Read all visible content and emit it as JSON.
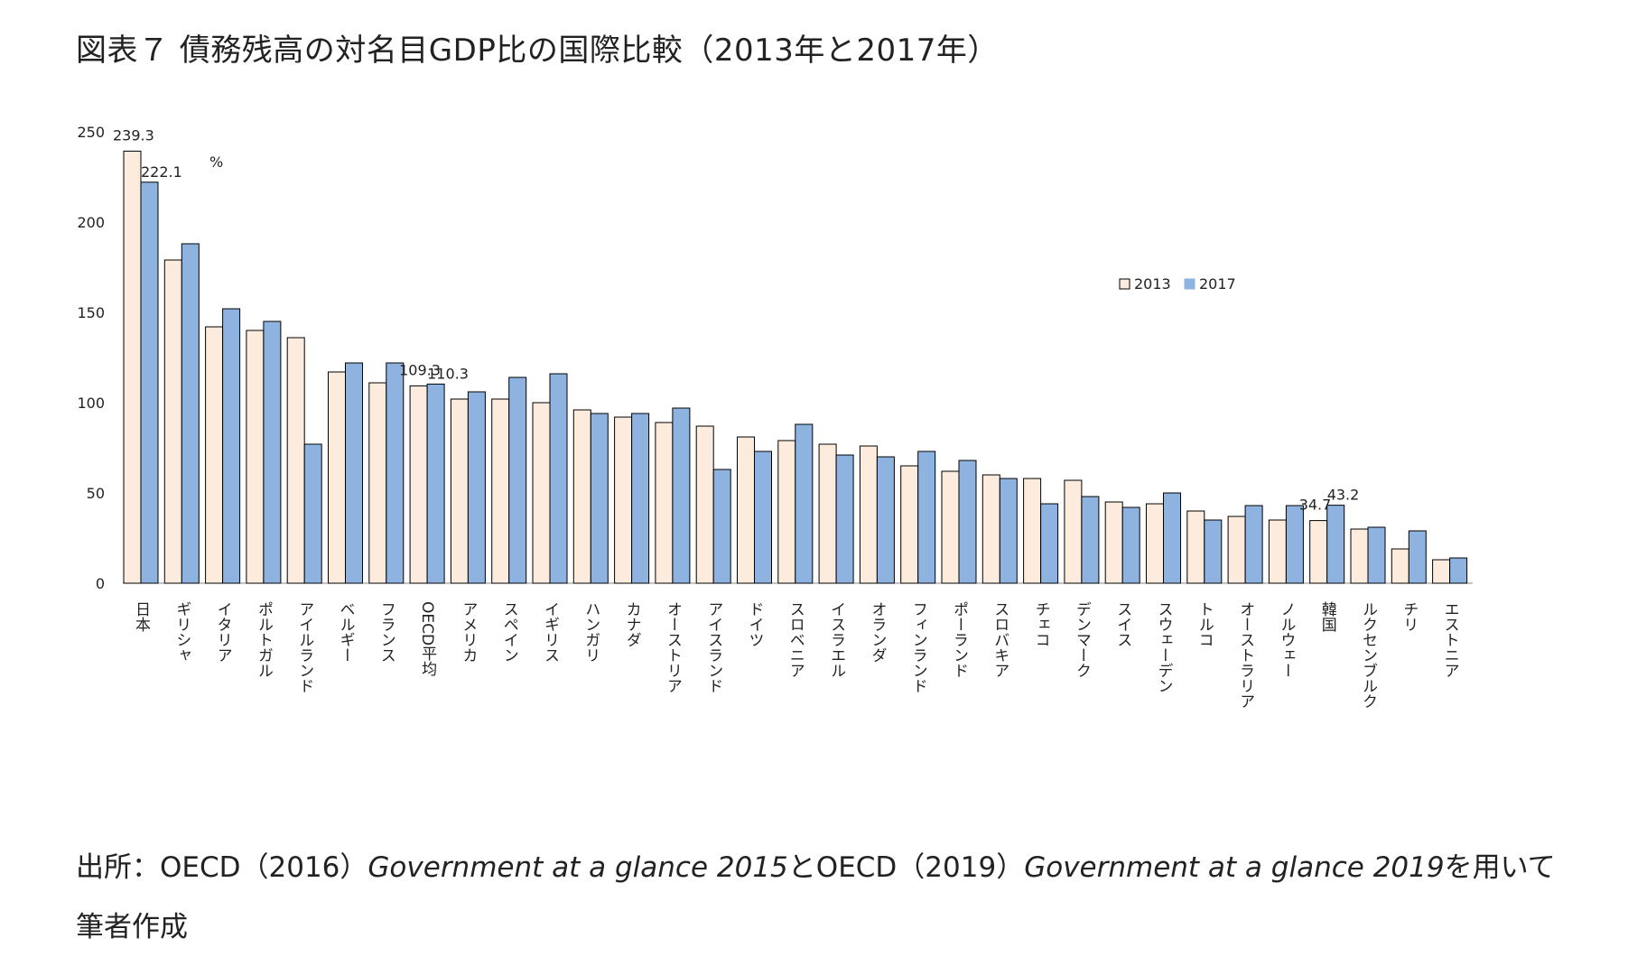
{
  "title": "図表７ 債務残高の対名目GDP比の国際比較（2013年と2017年）",
  "unit_label": "%",
  "source": {
    "prefix": "出所：OECD（2016）",
    "work1": "Government at a glance 2015",
    "mid": "とOECD（2019）",
    "work2": "Government at a glance 2019",
    "suffix": "を用いて筆者作成"
  },
  "colors": {
    "s2013": "#FDEBDD",
    "s2017": "#8EB3E1",
    "outline": "#000000"
  },
  "chart_data": {
    "type": "bar",
    "ylim": [
      0,
      250
    ],
    "yticks": [
      0,
      50,
      100,
      150,
      200,
      250
    ],
    "legend_position": "upper-right",
    "categories": [
      "日本",
      "ギリシャ",
      "イタリア",
      "ポルトガル",
      "アイルランド",
      "ベルギー",
      "フランス",
      "OECD平均",
      "アメリカ",
      "スペイン",
      "イギリス",
      "ハンガリ",
      "カナダ",
      "オーストリア",
      "アイスランド",
      "ドイツ",
      "スロベニア",
      "イスラエル",
      "オランダ",
      "フィンランド",
      "ポーランド",
      "スロバキア",
      "チェコ",
      "デンマーク",
      "スイス",
      "スウェーデン",
      "トルコ",
      "オーストラリア",
      "ノルウェー",
      "韓国",
      "ルクセンブルク",
      "チリ",
      "エストニア"
    ],
    "series": [
      {
        "name": "2013",
        "values": [
          239.3,
          179,
          142,
          140,
          136,
          117,
          111,
          109.3,
          102,
          102,
          100,
          96,
          92,
          89,
          87,
          81,
          79,
          77,
          76,
          65,
          62,
          60,
          58,
          57,
          45,
          44,
          40,
          37,
          35,
          34.7,
          30,
          19,
          13
        ]
      },
      {
        "name": "2017",
        "values": [
          222.1,
          188,
          152,
          145,
          77,
          122,
          122,
          110.3,
          106,
          114,
          116,
          94,
          94,
          97,
          63,
          73,
          88,
          71,
          70,
          73,
          68,
          58,
          44,
          48,
          42,
          50,
          35,
          43,
          43,
          43.2,
          31,
          29,
          14
        ]
      }
    ],
    "data_labels": [
      {
        "category": "日本",
        "series": "2013",
        "text": "239.3"
      },
      {
        "category": "日本",
        "series": "2017",
        "text": "222.1"
      },
      {
        "category": "OECD平均",
        "series": "2013",
        "text": "109.3"
      },
      {
        "category": "OECD平均",
        "series": "2017",
        "text": "110.3"
      },
      {
        "category": "韓国",
        "series": "2013",
        "text": "34.7"
      },
      {
        "category": "韓国",
        "series": "2017",
        "text": "43.2"
      }
    ]
  }
}
